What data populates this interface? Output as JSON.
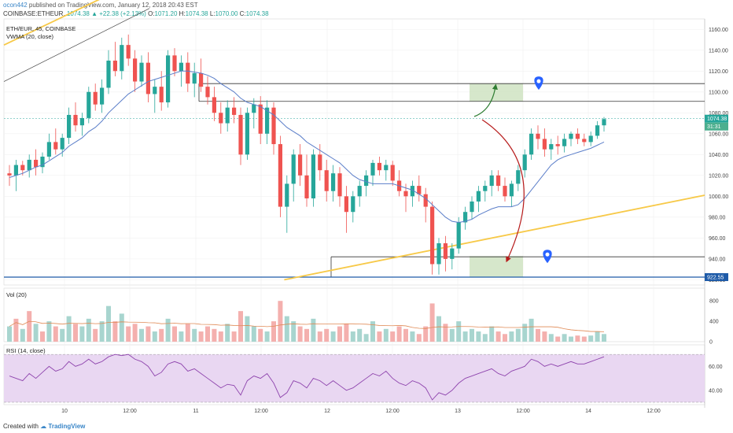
{
  "header": {
    "line1_user": "ocon442",
    "line1_rest": " published on TradingView.com, January 12, 2018 20:43 EST",
    "symbol": "COINBASE:ETHEUR,",
    "last": "1074.38",
    "change": "▲ +22.38 (+2.13%)",
    "o_label": "O:",
    "o": "1071.20",
    "h_label": "H:",
    "h": "1074.38",
    "l_label": "L:",
    "l": "1070.00",
    "c_label": "C:",
    "c": "1074.38"
  },
  "panes": {
    "price_legend_1": "ETH/EUR, 45, COINBASE",
    "price_legend_2": "VWMA (20, close)",
    "vol_legend": "Vol (20)",
    "rsi_legend": "RSI (14, close)"
  },
  "price_tags": {
    "last": "1074.38",
    "countdown": "31:31",
    "support": "922.55"
  },
  "footer": {
    "created": "Created with",
    "brand": "TradingView"
  },
  "colors": {
    "up": "#26a69a",
    "down": "#ef5350",
    "vwma": "#5b7ec9",
    "trend": "#f7c948",
    "rsi": "#8e44ad",
    "rsi_band": "#e9d7f2",
    "zone": "#cfe3c2",
    "marker": "#2962ff"
  },
  "chart_data": {
    "type": "candlestick",
    "timeframe": "45",
    "x_ticks": [
      "10",
      "12:00",
      "11",
      "12:00",
      "12",
      "12:00",
      "13",
      "12:00",
      "14",
      "12:00"
    ],
    "price_axis": {
      "ticks": [
        920,
        940,
        960,
        980,
        1000,
        1020,
        1040,
        1060,
        1080,
        1100,
        1120,
        1140,
        1160
      ],
      "ylim": [
        915,
        1170
      ]
    },
    "volume_axis": {
      "ticks": [
        0,
        400,
        800
      ],
      "ylim": [
        0,
        1050
      ]
    },
    "rsi_axis": {
      "ticks": [
        40,
        60
      ],
      "ylim": [
        28,
        78
      ],
      "band": [
        30,
        70
      ]
    },
    "candles": [
      [
        1022,
        1030,
        1010,
        1020
      ],
      [
        1020,
        1035,
        1005,
        1030
      ],
      [
        1030,
        1034,
        1020,
        1025
      ],
      [
        1025,
        1040,
        1018,
        1035
      ],
      [
        1035,
        1045,
        1020,
        1028
      ],
      [
        1028,
        1042,
        1022,
        1038
      ],
      [
        1038,
        1060,
        1035,
        1052
      ],
      [
        1052,
        1065,
        1040,
        1045
      ],
      [
        1045,
        1060,
        1038,
        1056
      ],
      [
        1056,
        1085,
        1050,
        1078
      ],
      [
        1078,
        1090,
        1062,
        1068
      ],
      [
        1068,
        1080,
        1058,
        1075
      ],
      [
        1075,
        1105,
        1070,
        1100
      ],
      [
        1100,
        1108,
        1082,
        1088
      ],
      [
        1088,
        1112,
        1080,
        1104
      ],
      [
        1104,
        1140,
        1098,
        1130
      ],
      [
        1130,
        1148,
        1115,
        1120
      ],
      [
        1120,
        1152,
        1112,
        1145
      ],
      [
        1145,
        1155,
        1125,
        1132
      ],
      [
        1132,
        1140,
        1100,
        1110
      ],
      [
        1110,
        1135,
        1105,
        1128
      ],
      [
        1128,
        1138,
        1090,
        1098
      ],
      [
        1098,
        1112,
        1080,
        1105
      ],
      [
        1105,
        1120,
        1082,
        1090
      ],
      [
        1090,
        1140,
        1085,
        1135
      ],
      [
        1135,
        1142,
        1115,
        1120
      ],
      [
        1120,
        1135,
        1105,
        1128
      ],
      [
        1128,
        1138,
        1100,
        1108
      ],
      [
        1108,
        1128,
        1095,
        1118
      ],
      [
        1118,
        1132,
        1100,
        1105
      ],
      [
        1105,
        1115,
        1088,
        1095
      ],
      [
        1095,
        1105,
        1072,
        1080
      ],
      [
        1080,
        1090,
        1060,
        1070
      ],
      [
        1070,
        1092,
        1062,
        1085
      ],
      [
        1085,
        1095,
        1070,
        1078
      ],
      [
        1078,
        1085,
        1030,
        1040
      ],
      [
        1040,
        1085,
        1035,
        1080
      ],
      [
        1080,
        1094,
        1065,
        1088
      ],
      [
        1088,
        1096,
        1050,
        1060
      ],
      [
        1060,
        1092,
        1050,
        1085
      ],
      [
        1085,
        1090,
        1040,
        1050
      ],
      [
        1050,
        1058,
        980,
        990
      ],
      [
        990,
        1020,
        965,
        1012
      ],
      [
        1012,
        1045,
        995,
        1040
      ],
      [
        1040,
        1050,
        1010,
        1020
      ],
      [
        1020,
        1040,
        990,
        998
      ],
      [
        998,
        1045,
        990,
        1040
      ],
      [
        1040,
        1050,
        1015,
        1025
      ],
      [
        1025,
        1035,
        995,
        1005
      ],
      [
        1005,
        1030,
        995,
        1022
      ],
      [
        1022,
        1028,
        990,
        1000
      ],
      [
        1000,
        1010,
        965,
        985
      ],
      [
        985,
        1005,
        975,
        1000
      ],
      [
        1000,
        1015,
        990,
        1010
      ],
      [
        1010,
        1025,
        1000,
        1020
      ],
      [
        1020,
        1035,
        1010,
        1032
      ],
      [
        1032,
        1038,
        1020,
        1025
      ],
      [
        1025,
        1035,
        1015,
        1030
      ],
      [
        1030,
        1034,
        1010,
        1015
      ],
      [
        1015,
        1025,
        1000,
        1005
      ],
      [
        1005,
        1012,
        985,
        1000
      ],
      [
        1000,
        1015,
        990,
        1010
      ],
      [
        1010,
        1020,
        995,
        1002
      ],
      [
        1002,
        1008,
        975,
        990
      ],
      [
        990,
        995,
        925,
        935
      ],
      [
        935,
        960,
        925,
        955
      ],
      [
        955,
        962,
        928,
        940
      ],
      [
        940,
        955,
        930,
        950
      ],
      [
        950,
        980,
        945,
        975
      ],
      [
        975,
        990,
        968,
        985
      ],
      [
        985,
        1000,
        978,
        995
      ],
      [
        995,
        1010,
        985,
        1005
      ],
      [
        1005,
        1015,
        995,
        1010
      ],
      [
        1010,
        1025,
        1000,
        1020
      ],
      [
        1020,
        1025,
        1005,
        1010
      ],
      [
        1010,
        1018,
        995,
        1000
      ],
      [
        1000,
        1015,
        990,
        1012
      ],
      [
        1012,
        1030,
        1005,
        1025
      ],
      [
        1025,
        1045,
        1018,
        1040
      ],
      [
        1040,
        1065,
        1035,
        1060
      ],
      [
        1060,
        1068,
        1045,
        1055
      ],
      [
        1055,
        1065,
        1038,
        1045
      ],
      [
        1045,
        1055,
        1035,
        1050
      ],
      [
        1050,
        1058,
        1040,
        1048
      ],
      [
        1048,
        1060,
        1042,
        1055
      ],
      [
        1055,
        1062,
        1048,
        1060
      ],
      [
        1060,
        1065,
        1050,
        1055
      ],
      [
        1055,
        1060,
        1048,
        1052
      ],
      [
        1052,
        1062,
        1048,
        1058
      ],
      [
        1058,
        1072,
        1055,
        1068
      ],
      [
        1068,
        1076,
        1062,
        1074
      ]
    ],
    "vwma": [
      1018,
      1020,
      1022,
      1025,
      1028,
      1030,
      1034,
      1038,
      1042,
      1048,
      1052,
      1056,
      1062,
      1066,
      1072,
      1080,
      1086,
      1092,
      1098,
      1102,
      1106,
      1110,
      1112,
      1114,
      1116,
      1118,
      1120,
      1120,
      1119,
      1118,
      1116,
      1113,
      1108,
      1104,
      1100,
      1094,
      1090,
      1088,
      1086,
      1082,
      1078,
      1072,
      1066,
      1062,
      1058,
      1052,
      1048,
      1044,
      1040,
      1036,
      1032,
      1026,
      1020,
      1016,
      1014,
      1012,
      1012,
      1012,
      1012,
      1010,
      1008,
      1006,
      1002,
      998,
      992,
      986,
      980,
      976,
      975,
      976,
      978,
      982,
      985,
      988,
      990,
      990,
      990,
      992,
      998,
      1006,
      1014,
      1022,
      1030,
      1035,
      1038,
      1040,
      1042,
      1044,
      1046,
      1049,
      1052
    ],
    "rsi": [
      52,
      50,
      48,
      54,
      50,
      55,
      60,
      56,
      58,
      64,
      60,
      62,
      66,
      62,
      64,
      68,
      70,
      69,
      70,
      66,
      64,
      60,
      52,
      55,
      62,
      64,
      62,
      56,
      58,
      54,
      50,
      46,
      42,
      45,
      44,
      36,
      48,
      52,
      50,
      54,
      46,
      34,
      38,
      48,
      46,
      42,
      50,
      48,
      44,
      48,
      44,
      40,
      42,
      46,
      50,
      54,
      52,
      56,
      50,
      46,
      44,
      48,
      46,
      42,
      32,
      38,
      36,
      40,
      46,
      50,
      52,
      54,
      56,
      58,
      54,
      52,
      56,
      58,
      60,
      66,
      64,
      60,
      62,
      60,
      62,
      64,
      62,
      62,
      64,
      66,
      68
    ],
    "volume": [
      [
        300,
        1
      ],
      [
        450,
        0
      ],
      [
        250,
        1
      ],
      [
        600,
        0
      ],
      [
        350,
        1
      ],
      [
        200,
        0
      ],
      [
        400,
        1
      ],
      [
        300,
        0
      ],
      [
        250,
        1
      ],
      [
        500,
        1
      ],
      [
        350,
        0
      ],
      [
        300,
        1
      ],
      [
        450,
        1
      ],
      [
        250,
        0
      ],
      [
        400,
        1
      ],
      [
        700,
        1
      ],
      [
        400,
        0
      ],
      [
        550,
        1
      ],
      [
        300,
        0
      ],
      [
        350,
        0
      ],
      [
        250,
        1
      ],
      [
        300,
        0
      ],
      [
        200,
        1
      ],
      [
        250,
        0
      ],
      [
        450,
        1
      ],
      [
        300,
        0
      ],
      [
        200,
        1
      ],
      [
        350,
        0
      ],
      [
        250,
        1
      ],
      [
        200,
        0
      ],
      [
        300,
        0
      ],
      [
        250,
        0
      ],
      [
        200,
        0
      ],
      [
        350,
        1
      ],
      [
        200,
        0
      ],
      [
        600,
        0
      ],
      [
        500,
        1
      ],
      [
        300,
        1
      ],
      [
        250,
        0
      ],
      [
        200,
        1
      ],
      [
        400,
        0
      ],
      [
        800,
        0
      ],
      [
        500,
        1
      ],
      [
        400,
        1
      ],
      [
        300,
        0
      ],
      [
        250,
        0
      ],
      [
        450,
        1
      ],
      [
        200,
        0
      ],
      [
        250,
        0
      ],
      [
        200,
        1
      ],
      [
        300,
        0
      ],
      [
        350,
        0
      ],
      [
        200,
        1
      ],
      [
        250,
        1
      ],
      [
        150,
        1
      ],
      [
        400,
        1
      ],
      [
        200,
        0
      ],
      [
        250,
        1
      ],
      [
        200,
        0
      ],
      [
        300,
        0
      ],
      [
        250,
        0
      ],
      [
        200,
        1
      ],
      [
        150,
        0
      ],
      [
        300,
        0
      ],
      [
        750,
        0
      ],
      [
        500,
        1
      ],
      [
        350,
        0
      ],
      [
        250,
        1
      ],
      [
        400,
        1
      ],
      [
        200,
        1
      ],
      [
        250,
        1
      ],
      [
        200,
        1
      ],
      [
        150,
        1
      ],
      [
        300,
        1
      ],
      [
        200,
        0
      ],
      [
        150,
        0
      ],
      [
        200,
        1
      ],
      [
        250,
        1
      ],
      [
        350,
        1
      ],
      [
        450,
        1
      ],
      [
        250,
        0
      ],
      [
        200,
        0
      ],
      [
        150,
        1
      ],
      [
        100,
        0
      ],
      [
        150,
        1
      ],
      [
        100,
        1
      ],
      [
        120,
        0
      ],
      [
        100,
        0
      ],
      [
        120,
        1
      ],
      [
        200,
        1
      ],
      [
        150,
        1
      ]
    ],
    "drawings": {
      "resistance_levels": [
        1108,
        1091
      ],
      "support_level": 942,
      "low_line": 922.55,
      "trendline_lower": [
        [
          0.4,
          920
        ],
        [
          1.0,
          1001
        ]
      ],
      "trendline_upper": [
        [
          0.0,
          1110
        ],
        [
          0.22,
          1180
        ]
      ]
    }
  }
}
